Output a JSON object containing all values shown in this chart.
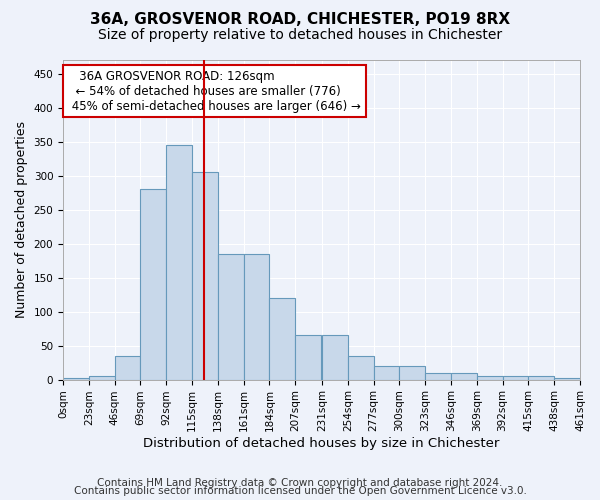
{
  "title1": "36A, GROSVENOR ROAD, CHICHESTER, PO19 8RX",
  "title2": "Size of property relative to detached houses in Chichester",
  "xlabel": "Distribution of detached houses by size in Chichester",
  "ylabel": "Number of detached properties",
  "bin_labels": [
    "0sqm",
    "23sqm",
    "46sqm",
    "69sqm",
    "92sqm",
    "115sqm",
    "138sqm",
    "161sqm",
    "184sqm",
    "207sqm",
    "231sqm",
    "254sqm",
    "277sqm",
    "300sqm",
    "323sqm",
    "346sqm",
    "369sqm",
    "392sqm",
    "415sqm",
    "438sqm",
    "461sqm"
  ],
  "bin_edges": [
    0,
    23,
    46,
    69,
    92,
    115,
    138,
    161,
    184,
    207,
    231,
    254,
    277,
    300,
    323,
    346,
    369,
    392,
    415,
    438,
    461
  ],
  "bar_heights": [
    2,
    5,
    35,
    280,
    345,
    305,
    185,
    185,
    120,
    65,
    65,
    35,
    20,
    20,
    10,
    10,
    5,
    5,
    5,
    2
  ],
  "bar_color": "#c8d8ea",
  "bar_edge_color": "#6699bb",
  "property_size": 126,
  "vline_color": "#cc0000",
  "annotation_line1": "   36A GROSVENOR ROAD: 126sqm",
  "annotation_line2": "  ← 54% of detached houses are smaller (776)",
  "annotation_line3": " 45% of semi-detached houses are larger (646) →",
  "annotation_box_color": "#ffffff",
  "annotation_box_edge": "#cc0000",
  "ylim": [
    0,
    470
  ],
  "yticks": [
    0,
    50,
    100,
    150,
    200,
    250,
    300,
    350,
    400,
    450
  ],
  "footer1": "Contains HM Land Registry data © Crown copyright and database right 2024.",
  "footer2": "Contains public sector information licensed under the Open Government Licence v3.0.",
  "bg_color": "#eef2fa",
  "grid_color": "#ffffff",
  "title_fontsize": 11,
  "subtitle_fontsize": 10,
  "axis_label_fontsize": 9,
  "tick_fontsize": 7.5,
  "annotation_fontsize": 8.5,
  "footer_fontsize": 7.5
}
